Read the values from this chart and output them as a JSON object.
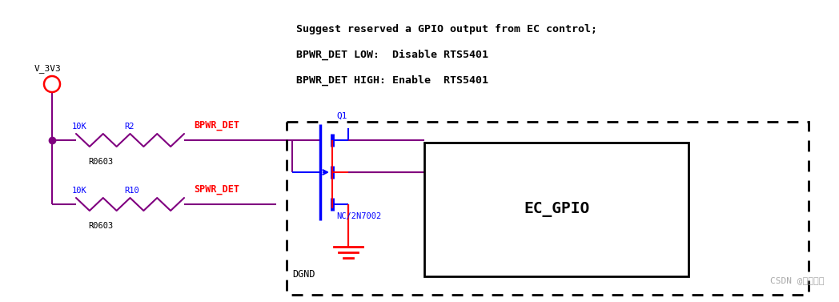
{
  "bg_color": "#ffffff",
  "comment_lines": [
    "Suggest reserved a GPIO output from EC control;",
    "BPWR_DET LOW:  Disable RTS5401",
    "BPWR_DET HIGH: Enable  RTS5401"
  ],
  "vcc_label": "V_3V3",
  "net_bpwr": "BPWR_DET",
  "net_spwr": "SPWR_DET",
  "net_color": "#ff0000",
  "wire_color": "#800080",
  "blue_color": "#0000ff",
  "resistor_label_r2": "R2",
  "resistor_label_r10": "R10",
  "resistor_val_r2": "10K",
  "resistor_val_r10": "10K",
  "r2_footprint": "R0603",
  "r10_footprint": "R0603",
  "q1_label": "Q1",
  "q1_part": "NC/2N7002",
  "gnd_label": "DGND",
  "box_label": "EC_GPIO",
  "watermark": "CSDN @医疗电子",
  "watermark_color": "#aaaaaa"
}
